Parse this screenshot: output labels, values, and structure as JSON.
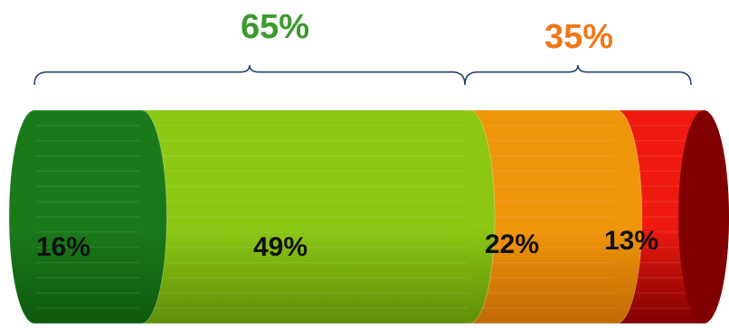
{
  "chart_data": {
    "type": "bar",
    "orientation": "horizontal-stacked-cylinder",
    "segments": [
      {
        "value": 16,
        "label": "16%",
        "color": "#1a7a1a",
        "dark": "#0e5a0e"
      },
      {
        "value": 49,
        "label": "49%",
        "color": "#8cc814",
        "dark": "#5e8f08"
      },
      {
        "value": 22,
        "label": "22%",
        "color": "#f0960a",
        "dark": "#c06a05"
      },
      {
        "value": 13,
        "label": "13%",
        "color": "#ee1a10",
        "dark": "#800000"
      }
    ],
    "groups": [
      {
        "label": "65%",
        "color": "#3c9a2e",
        "from": 0,
        "to": 2
      },
      {
        "label": "35%",
        "color": "#f07818",
        "from": 2,
        "to": 4
      }
    ],
    "total": 100
  }
}
